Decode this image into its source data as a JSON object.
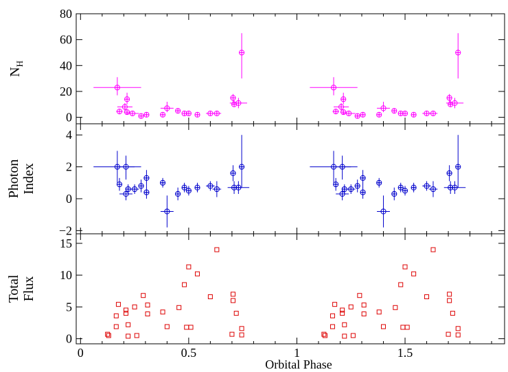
{
  "figure": {
    "xlabel": "Orbital Phase",
    "x_ticks": [
      0,
      0.5,
      1,
      1.5
    ],
    "x_tick_labels": [
      "0",
      "0.5",
      "1",
      "1.5"
    ],
    "xlim": [
      -0.02,
      1.96
    ]
  },
  "chart_data": [
    {
      "type": "scatter",
      "panel": "top",
      "ylabel_main": "N",
      "ylabel_sub": "H",
      "ylim": [
        -5,
        80
      ],
      "y_ticks": [
        0,
        20,
        40,
        60,
        80
      ],
      "y_tick_labels": [
        "0",
        "20",
        "40",
        "60",
        "80"
      ],
      "color": "#ff00ff",
      "marker": "circle-plus",
      "points": [
        {
          "x": 0.17,
          "y": 23,
          "xerr": 0.11,
          "ylo": 6,
          "yhi": 8
        },
        {
          "x": 0.18,
          "y": 4.5,
          "xerr": 0.015,
          "ylo": 1.5,
          "yhi": 2
        },
        {
          "x": 0.205,
          "y": 8,
          "xerr": 0.035,
          "ylo": 3,
          "yhi": 3
        },
        {
          "x": 0.215,
          "y": 14,
          "xerr": 0.01,
          "ylo": 4,
          "yhi": 5
        },
        {
          "x": 0.215,
          "y": 4,
          "xerr": 0.015,
          "ylo": 1.5,
          "yhi": 2
        },
        {
          "x": 0.24,
          "y": 3,
          "xerr": 0.03,
          "ylo": 1,
          "yhi": 1
        },
        {
          "x": 0.28,
          "y": 1,
          "xerr": 0.01,
          "ylo": 1,
          "yhi": 1
        },
        {
          "x": 0.305,
          "y": 2,
          "xerr": 0.01,
          "ylo": 1,
          "yhi": 2
        },
        {
          "x": 0.38,
          "y": 2,
          "xerr": 0.01,
          "ylo": 1,
          "yhi": 1
        },
        {
          "x": 0.4,
          "y": 7,
          "xerr": 0.03,
          "ylo": 3,
          "yhi": 5
        },
        {
          "x": 0.45,
          "y": 5,
          "xerr": 0.01,
          "ylo": 1.5,
          "yhi": 1.5
        },
        {
          "x": 0.48,
          "y": 3,
          "xerr": 0.01,
          "ylo": 1,
          "yhi": 1
        },
        {
          "x": 0.5,
          "y": 3,
          "xerr": 0.01,
          "ylo": 1,
          "yhi": 1
        },
        {
          "x": 0.54,
          "y": 2,
          "xerr": 0.01,
          "ylo": 1,
          "yhi": 1
        },
        {
          "x": 0.6,
          "y": 3,
          "xerr": 0.02,
          "ylo": 1,
          "yhi": 1
        },
        {
          "x": 0.63,
          "y": 3,
          "xerr": 0.02,
          "ylo": 1,
          "yhi": 2
        },
        {
          "x": 0.705,
          "y": 15,
          "xerr": 0.01,
          "ylo": 3,
          "yhi": 3
        },
        {
          "x": 0.71,
          "y": 10,
          "xerr": 0.01,
          "ylo": 2,
          "yhi": 3
        },
        {
          "x": 0.73,
          "y": 11,
          "xerr": 0.04,
          "ylo": 4,
          "yhi": 4
        },
        {
          "x": 0.745,
          "y": 50,
          "xerr": 0.01,
          "ylo": 20,
          "yhi": 15
        },
        {
          "x": 1.17,
          "y": 23,
          "xerr": 0.11,
          "ylo": 6,
          "yhi": 8
        },
        {
          "x": 1.18,
          "y": 4.5,
          "xerr": 0.015,
          "ylo": 1.5,
          "yhi": 2
        },
        {
          "x": 1.205,
          "y": 8,
          "xerr": 0.035,
          "ylo": 3,
          "yhi": 3
        },
        {
          "x": 1.215,
          "y": 14,
          "xerr": 0.01,
          "ylo": 4,
          "yhi": 5
        },
        {
          "x": 1.215,
          "y": 4,
          "xerr": 0.015,
          "ylo": 1.5,
          "yhi": 2
        },
        {
          "x": 1.24,
          "y": 3,
          "xerr": 0.03,
          "ylo": 1,
          "yhi": 1
        },
        {
          "x": 1.28,
          "y": 1,
          "xerr": 0.01,
          "ylo": 1,
          "yhi": 1
        },
        {
          "x": 1.305,
          "y": 2,
          "xerr": 0.01,
          "ylo": 1,
          "yhi": 2
        },
        {
          "x": 1.38,
          "y": 2,
          "xerr": 0.01,
          "ylo": 1,
          "yhi": 1
        },
        {
          "x": 1.4,
          "y": 7,
          "xerr": 0.03,
          "ylo": 3,
          "yhi": 5
        },
        {
          "x": 1.45,
          "y": 5,
          "xerr": 0.01,
          "ylo": 1.5,
          "yhi": 1.5
        },
        {
          "x": 1.48,
          "y": 3,
          "xerr": 0.01,
          "ylo": 1,
          "yhi": 1
        },
        {
          "x": 1.5,
          "y": 3,
          "xerr": 0.01,
          "ylo": 1,
          "yhi": 1
        },
        {
          "x": 1.54,
          "y": 2,
          "xerr": 0.01,
          "ylo": 1,
          "yhi": 1
        },
        {
          "x": 1.6,
          "y": 3,
          "xerr": 0.02,
          "ylo": 1,
          "yhi": 1
        },
        {
          "x": 1.63,
          "y": 3,
          "xerr": 0.02,
          "ylo": 1,
          "yhi": 2
        },
        {
          "x": 1.705,
          "y": 15,
          "xerr": 0.01,
          "ylo": 3,
          "yhi": 3
        },
        {
          "x": 1.71,
          "y": 10,
          "xerr": 0.01,
          "ylo": 2,
          "yhi": 3
        },
        {
          "x": 1.73,
          "y": 11,
          "xerr": 0.04,
          "ylo": 4,
          "yhi": 4
        },
        {
          "x": 1.745,
          "y": 50,
          "xerr": 0.01,
          "ylo": 20,
          "yhi": 15
        }
      ]
    },
    {
      "type": "scatter",
      "panel": "middle",
      "ylabel_lines": [
        "Photon",
        "Index"
      ],
      "ylim": [
        -2.2,
        4.7
      ],
      "y_ticks": [
        -2,
        0,
        2,
        4
      ],
      "y_tick_labels": [
        "−2",
        "0",
        "2",
        "4"
      ],
      "color": "#0000cc",
      "marker": "circle-plus",
      "points": [
        {
          "x": 0.17,
          "y": 2.0,
          "xerr": 0.11,
          "ylo": 1.0,
          "yhi": 1.0
        },
        {
          "x": 0.18,
          "y": 0.9,
          "xerr": 0.01,
          "ylo": 0.4,
          "yhi": 0.4
        },
        {
          "x": 0.21,
          "y": 2.0,
          "xerr": 0.04,
          "ylo": 0.8,
          "yhi": 0.7
        },
        {
          "x": 0.21,
          "y": 0.3,
          "xerr": 0.03,
          "ylo": 0.4,
          "yhi": 0.4
        },
        {
          "x": 0.22,
          "y": 0.6,
          "xerr": 0.01,
          "ylo": 0.3,
          "yhi": 0.3
        },
        {
          "x": 0.25,
          "y": 0.6,
          "xerr": 0.02,
          "ylo": 0.3,
          "yhi": 0.3
        },
        {
          "x": 0.28,
          "y": 0.8,
          "xerr": 0.01,
          "ylo": 0.4,
          "yhi": 0.4
        },
        {
          "x": 0.305,
          "y": 1.3,
          "xerr": 0.01,
          "ylo": 0.5,
          "yhi": 0.5
        },
        {
          "x": 0.305,
          "y": 0.4,
          "xerr": 0.01,
          "ylo": 0.4,
          "yhi": 0.4
        },
        {
          "x": 0.38,
          "y": 1.0,
          "xerr": 0.01,
          "ylo": 0.3,
          "yhi": 0.3
        },
        {
          "x": 0.4,
          "y": -0.8,
          "xerr": 0.03,
          "ylo": 1.0,
          "yhi": 1.0
        },
        {
          "x": 0.45,
          "y": 0.3,
          "xerr": 0.01,
          "ylo": 0.4,
          "yhi": 0.4
        },
        {
          "x": 0.48,
          "y": 0.7,
          "xerr": 0.01,
          "ylo": 0.3,
          "yhi": 0.3
        },
        {
          "x": 0.5,
          "y": 0.5,
          "xerr": 0.01,
          "ylo": 0.3,
          "yhi": 0.3
        },
        {
          "x": 0.54,
          "y": 0.7,
          "xerr": 0.01,
          "ylo": 0.3,
          "yhi": 0.3
        },
        {
          "x": 0.6,
          "y": 0.8,
          "xerr": 0.02,
          "ylo": 0.3,
          "yhi": 0.3
        },
        {
          "x": 0.63,
          "y": 0.6,
          "xerr": 0.02,
          "ylo": 0.5,
          "yhi": 0.5
        },
        {
          "x": 0.705,
          "y": 1.6,
          "xerr": 0.01,
          "ylo": 0.5,
          "yhi": 0.5
        },
        {
          "x": 0.71,
          "y": 0.7,
          "xerr": 0.01,
          "ylo": 0.4,
          "yhi": 0.4
        },
        {
          "x": 0.73,
          "y": 0.7,
          "xerr": 0.05,
          "ylo": 0.4,
          "yhi": 0.4
        },
        {
          "x": 0.745,
          "y": 2.0,
          "xerr": 0.01,
          "ylo": 1.3,
          "yhi": 2.0
        },
        {
          "x": 1.17,
          "y": 2.0,
          "xerr": 0.11,
          "ylo": 1.0,
          "yhi": 1.0
        },
        {
          "x": 1.18,
          "y": 0.9,
          "xerr": 0.01,
          "ylo": 0.4,
          "yhi": 0.4
        },
        {
          "x": 1.21,
          "y": 2.0,
          "xerr": 0.04,
          "ylo": 0.8,
          "yhi": 0.7
        },
        {
          "x": 1.21,
          "y": 0.3,
          "xerr": 0.03,
          "ylo": 0.4,
          "yhi": 0.4
        },
        {
          "x": 1.22,
          "y": 0.6,
          "xerr": 0.01,
          "ylo": 0.3,
          "yhi": 0.3
        },
        {
          "x": 1.25,
          "y": 0.6,
          "xerr": 0.02,
          "ylo": 0.3,
          "yhi": 0.3
        },
        {
          "x": 1.28,
          "y": 0.8,
          "xerr": 0.01,
          "ylo": 0.4,
          "yhi": 0.4
        },
        {
          "x": 1.305,
          "y": 1.3,
          "xerr": 0.01,
          "ylo": 0.5,
          "yhi": 0.5
        },
        {
          "x": 1.305,
          "y": 0.4,
          "xerr": 0.01,
          "ylo": 0.4,
          "yhi": 0.4
        },
        {
          "x": 1.38,
          "y": 1.0,
          "xerr": 0.01,
          "ylo": 0.3,
          "yhi": 0.3
        },
        {
          "x": 1.4,
          "y": -0.8,
          "xerr": 0.03,
          "ylo": 1.0,
          "yhi": 1.0
        },
        {
          "x": 1.45,
          "y": 0.3,
          "xerr": 0.01,
          "ylo": 0.4,
          "yhi": 0.4
        },
        {
          "x": 1.48,
          "y": 0.7,
          "xerr": 0.01,
          "ylo": 0.3,
          "yhi": 0.3
        },
        {
          "x": 1.5,
          "y": 0.5,
          "xerr": 0.01,
          "ylo": 0.3,
          "yhi": 0.3
        },
        {
          "x": 1.54,
          "y": 0.7,
          "xerr": 0.01,
          "ylo": 0.3,
          "yhi": 0.3
        },
        {
          "x": 1.6,
          "y": 0.8,
          "xerr": 0.02,
          "ylo": 0.3,
          "yhi": 0.3
        },
        {
          "x": 1.63,
          "y": 0.6,
          "xerr": 0.02,
          "ylo": 0.5,
          "yhi": 0.5
        },
        {
          "x": 1.705,
          "y": 1.6,
          "xerr": 0.01,
          "ylo": 0.5,
          "yhi": 0.5
        },
        {
          "x": 1.71,
          "y": 0.7,
          "xerr": 0.01,
          "ylo": 0.4,
          "yhi": 0.4
        },
        {
          "x": 1.73,
          "y": 0.7,
          "xerr": 0.05,
          "ylo": 0.4,
          "yhi": 0.4
        },
        {
          "x": 1.745,
          "y": 2.0,
          "xerr": 0.01,
          "ylo": 1.3,
          "yhi": 2.0
        }
      ]
    },
    {
      "type": "scatter",
      "panel": "bottom",
      "ylabel_lines": [
        "Total",
        "Flux"
      ],
      "ylim": [
        -0.8,
        16.5
      ],
      "y_ticks": [
        0,
        5,
        10,
        15
      ],
      "y_tick_labels": [
        "0",
        "5",
        "10",
        "15"
      ],
      "color": "#dd0000",
      "marker": "open-square",
      "points": [
        {
          "x": 0.125,
          "y": 0.7
        },
        {
          "x": 0.13,
          "y": 0.5
        },
        {
          "x": 0.165,
          "y": 1.9
        },
        {
          "x": 0.165,
          "y": 3.6
        },
        {
          "x": 0.175,
          "y": 5.4
        },
        {
          "x": 0.21,
          "y": 4.5
        },
        {
          "x": 0.21,
          "y": 4.0
        },
        {
          "x": 0.22,
          "y": 2.2
        },
        {
          "x": 0.22,
          "y": 0.4
        },
        {
          "x": 0.25,
          "y": 5.0
        },
        {
          "x": 0.26,
          "y": 0.5
        },
        {
          "x": 0.29,
          "y": 6.8
        },
        {
          "x": 0.31,
          "y": 5.3
        },
        {
          "x": 0.31,
          "y": 3.9
        },
        {
          "x": 0.38,
          "y": 4.2
        },
        {
          "x": 0.4,
          "y": 1.9
        },
        {
          "x": 0.455,
          "y": 4.9
        },
        {
          "x": 0.48,
          "y": 8.5
        },
        {
          "x": 0.49,
          "y": 1.8
        },
        {
          "x": 0.5,
          "y": 11.3
        },
        {
          "x": 0.51,
          "y": 1.8
        },
        {
          "x": 0.54,
          "y": 10.2
        },
        {
          "x": 0.6,
          "y": 6.6
        },
        {
          "x": 0.63,
          "y": 14.0
        },
        {
          "x": 0.7,
          "y": 0.7
        },
        {
          "x": 0.705,
          "y": 7.0
        },
        {
          "x": 0.705,
          "y": 6.0
        },
        {
          "x": 0.72,
          "y": 4.0
        },
        {
          "x": 0.745,
          "y": 1.6
        },
        {
          "x": 0.745,
          "y": 0.6
        },
        {
          "x": 1.125,
          "y": 0.7
        },
        {
          "x": 1.13,
          "y": 0.5
        },
        {
          "x": 1.165,
          "y": 1.9
        },
        {
          "x": 1.165,
          "y": 3.6
        },
        {
          "x": 1.175,
          "y": 5.4
        },
        {
          "x": 1.21,
          "y": 4.5
        },
        {
          "x": 1.21,
          "y": 4.0
        },
        {
          "x": 1.22,
          "y": 2.2
        },
        {
          "x": 1.22,
          "y": 0.4
        },
        {
          "x": 1.25,
          "y": 5.0
        },
        {
          "x": 1.26,
          "y": 0.5
        },
        {
          "x": 1.29,
          "y": 6.8
        },
        {
          "x": 1.31,
          "y": 5.3
        },
        {
          "x": 1.31,
          "y": 3.9
        },
        {
          "x": 1.38,
          "y": 4.2
        },
        {
          "x": 1.4,
          "y": 1.9
        },
        {
          "x": 1.455,
          "y": 4.9
        },
        {
          "x": 1.48,
          "y": 8.5
        },
        {
          "x": 1.49,
          "y": 1.8
        },
        {
          "x": 1.5,
          "y": 11.3
        },
        {
          "x": 1.51,
          "y": 1.8
        },
        {
          "x": 1.54,
          "y": 10.2
        },
        {
          "x": 1.6,
          "y": 6.6
        },
        {
          "x": 1.63,
          "y": 14.0
        },
        {
          "x": 1.7,
          "y": 0.7
        },
        {
          "x": 1.705,
          "y": 7.0
        },
        {
          "x": 1.705,
          "y": 6.0
        },
        {
          "x": 1.72,
          "y": 4.0
        },
        {
          "x": 1.745,
          "y": 1.6
        },
        {
          "x": 1.745,
          "y": 0.6
        }
      ]
    }
  ]
}
